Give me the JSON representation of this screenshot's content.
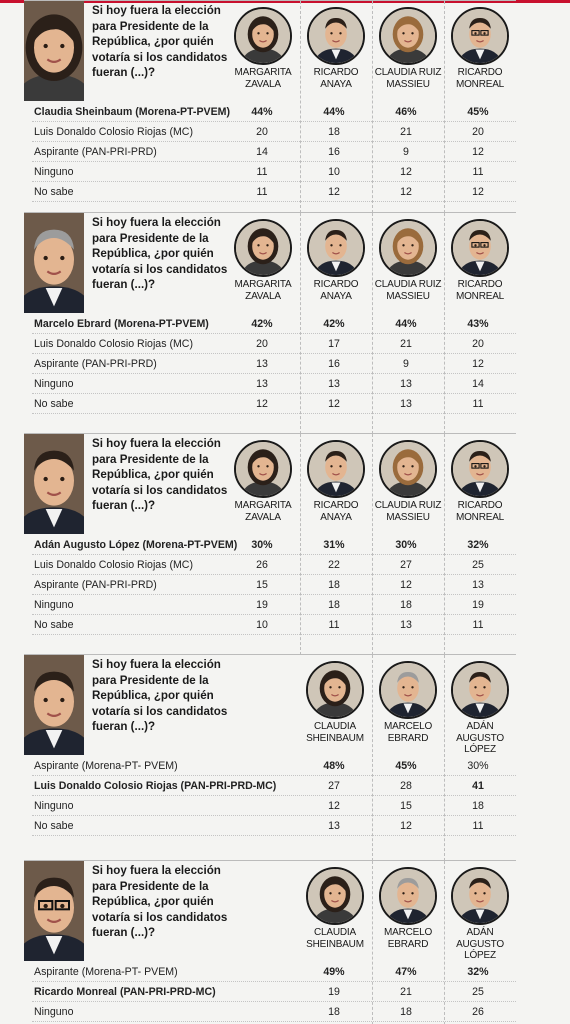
{
  "panels": [
    {
      "featured": "Claudia Sheinbaum",
      "question": "Si hoy fuera la elección para Presidente de la República, ¿por quién votaría si los candidatos fueran (...)?",
      "candidates": [
        {
          "name_lines": [
            "MARGARITA",
            "ZAVALA"
          ],
          "photo": "portrait-woman-dark-hair"
        },
        {
          "name_lines": [
            "RICARDO",
            "ANAYA"
          ],
          "photo": "portrait-man-short-hair"
        },
        {
          "name_lines": [
            "CLAUDIA RUIZ",
            "MASSIEU"
          ],
          "photo": "portrait-woman-light-hair"
        },
        {
          "name_lines": [
            "RICARDO",
            "MONREAL"
          ],
          "photo": "portrait-man-glasses"
        }
      ],
      "rows": [
        {
          "label": "Claudia Sheinbaum (Morena-PT-PVEM)",
          "bold": true,
          "values": [
            "44%",
            "44%",
            "46%",
            "45%"
          ],
          "bold_values": [
            true,
            true,
            true,
            true
          ]
        },
        {
          "label": "Luis Donaldo Colosio Riojas (MC)",
          "bold": false,
          "values": [
            "20",
            "18",
            "21",
            "20"
          ],
          "bold_values": [
            false,
            false,
            false,
            false
          ]
        },
        {
          "label": "Aspirante (PAN-PRI-PRD)",
          "bold": false,
          "values": [
            "14",
            "16",
            "9",
            "12"
          ],
          "bold_values": [
            false,
            false,
            false,
            false
          ]
        },
        {
          "label": "Ninguno",
          "bold": false,
          "values": [
            "11",
            "10",
            "12",
            "11"
          ],
          "bold_values": [
            false,
            false,
            false,
            false
          ]
        },
        {
          "label": "No sabe",
          "bold": false,
          "values": [
            "11",
            "12",
            "12",
            "12"
          ],
          "bold_values": [
            false,
            false,
            false,
            false
          ]
        }
      ]
    },
    {
      "featured": "Marcelo Ebrard",
      "question": "Si hoy fuera la elección para Presidente de la República, ¿por quién votaría si los candidatos fueran (...)?",
      "candidates": [
        {
          "name_lines": [
            "MARGARITA",
            "ZAVALA"
          ],
          "photo": "portrait-woman-dark-hair"
        },
        {
          "name_lines": [
            "RICARDO",
            "ANAYA"
          ],
          "photo": "portrait-man-short-hair"
        },
        {
          "name_lines": [
            "CLAUDIA RUIZ",
            "MASSIEU"
          ],
          "photo": "portrait-woman-light-hair"
        },
        {
          "name_lines": [
            "RICARDO",
            "MONREAL"
          ],
          "photo": "portrait-man-glasses"
        }
      ],
      "rows": [
        {
          "label": "Marcelo Ebrard (Morena-PT-PVEM)",
          "bold": true,
          "values": [
            "42%",
            "42%",
            "44%",
            "43%"
          ],
          "bold_values": [
            true,
            true,
            true,
            true
          ]
        },
        {
          "label": "Luis Donaldo Colosio Riojas (MC)",
          "bold": false,
          "values": [
            "20",
            "17",
            "21",
            "20"
          ],
          "bold_values": [
            false,
            false,
            false,
            false
          ]
        },
        {
          "label": "Aspirante (PAN-PRI-PRD)",
          "bold": false,
          "values": [
            "13",
            "16",
            "9",
            "12"
          ],
          "bold_values": [
            false,
            false,
            false,
            false
          ]
        },
        {
          "label": "Ninguno",
          "bold": false,
          "values": [
            "13",
            "13",
            "13",
            "14"
          ],
          "bold_values": [
            false,
            false,
            false,
            false
          ]
        },
        {
          "label": "No sabe",
          "bold": false,
          "values": [
            "12",
            "12",
            "13",
            "11"
          ],
          "bold_values": [
            false,
            false,
            false,
            false
          ]
        }
      ]
    },
    {
      "featured": "Adán Augusto López",
      "question": "Si hoy fuera la elección para Presidente de la República, ¿por quién votaría si los candidatos fueran (...)?",
      "candidates": [
        {
          "name_lines": [
            "MARGARITA",
            "ZAVALA"
          ],
          "photo": "portrait-woman-dark-hair"
        },
        {
          "name_lines": [
            "RICARDO",
            "ANAYA"
          ],
          "photo": "portrait-man-short-hair"
        },
        {
          "name_lines": [
            "CLAUDIA RUIZ",
            "MASSIEU"
          ],
          "photo": "portrait-woman-light-hair"
        },
        {
          "name_lines": [
            "RICARDO",
            "MONREAL"
          ],
          "photo": "portrait-man-glasses"
        }
      ],
      "rows": [
        {
          "label": "Adán Augusto López (Morena-PT-PVEM)",
          "bold": true,
          "values": [
            "30%",
            "31%",
            "30%",
            "32%"
          ],
          "bold_values": [
            true,
            true,
            true,
            true
          ]
        },
        {
          "label": "Luis Donaldo Colosio Riojas (MC)",
          "bold": false,
          "values": [
            "26",
            "22",
            "27",
            "25"
          ],
          "bold_values": [
            false,
            false,
            false,
            false
          ]
        },
        {
          "label": "Aspirante (PAN-PRI-PRD)",
          "bold": false,
          "values": [
            "15",
            "18",
            "12",
            "13"
          ],
          "bold_values": [
            false,
            false,
            false,
            false
          ]
        },
        {
          "label": "Ninguno",
          "bold": false,
          "values": [
            "19",
            "18",
            "18",
            "19"
          ],
          "bold_values": [
            false,
            false,
            false,
            false
          ]
        },
        {
          "label": "No sabe",
          "bold": false,
          "values": [
            "10",
            "11",
            "13",
            "11"
          ],
          "bold_values": [
            false,
            false,
            false,
            false
          ]
        }
      ]
    },
    {
      "featured": "Luis Donaldo Colosio Riojas",
      "question": "Si hoy fuera la elección para Presidente de la República, ¿por quién votaría si los candidatos fueran (...)?",
      "candidates": [
        {
          "name_lines": [
            "CLAUDIA",
            "SHEINBAUM"
          ],
          "photo": "portrait-woman-dark-hair"
        },
        {
          "name_lines": [
            "MARCELO",
            "EBRARD"
          ],
          "photo": "portrait-man-gray-hair"
        },
        {
          "name_lines": [
            "ADÁN AUGUSTO",
            "LÓPEZ"
          ],
          "photo": "portrait-man-dark-hair"
        }
      ],
      "rows": [
        {
          "label": "Aspirante (Morena-PT- PVEM)",
          "bold": false,
          "values": [
            "48%",
            "45%",
            "30%"
          ],
          "bold_values": [
            true,
            true,
            false
          ]
        },
        {
          "label": "Luis Donaldo Colosio Riojas (PAN-PRI-PRD-MC)",
          "bold": true,
          "values": [
            "27",
            "28",
            "41"
          ],
          "bold_values": [
            false,
            false,
            true
          ]
        },
        {
          "label": "Ninguno",
          "bold": false,
          "values": [
            "12",
            "15",
            "18"
          ],
          "bold_values": [
            false,
            false,
            false
          ]
        },
        {
          "label": "No sabe",
          "bold": false,
          "values": [
            "13",
            "12",
            "11"
          ],
          "bold_values": [
            false,
            false,
            false
          ]
        }
      ]
    },
    {
      "featured": "Ricardo Monreal",
      "question": "Si hoy fuera la elección para Presidente de la República, ¿por quién votaría si los candidatos fueran (...)?",
      "candidates": [
        {
          "name_lines": [
            "CLAUDIA",
            "SHEINBAUM"
          ],
          "photo": "portrait-woman-dark-hair"
        },
        {
          "name_lines": [
            "MARCELO",
            "EBRARD"
          ],
          "photo": "portrait-man-gray-hair"
        },
        {
          "name_lines": [
            "ADÁN AUGUSTO",
            "LÓPEZ"
          ],
          "photo": "portrait-man-dark-hair"
        }
      ],
      "rows": [
        {
          "label": "Aspirante (Morena-PT- PVEM)",
          "bold": false,
          "values": [
            "49%",
            "47%",
            "32%"
          ],
          "bold_values": [
            true,
            true,
            true
          ]
        },
        {
          "label": "Ricardo Monreal (PAN-PRI-PRD-MC)",
          "bold": true,
          "values": [
            "19",
            "21",
            "25"
          ],
          "bold_values": [
            false,
            false,
            false
          ]
        },
        {
          "label": "Ninguno",
          "bold": false,
          "values": [
            "18",
            "18",
            "26"
          ],
          "bold_values": [
            false,
            false,
            false
          ]
        }
      ]
    }
  ],
  "colors": {
    "accent": "#c8102e",
    "text": "#1a1a1a",
    "rule": "#bbbbbb"
  }
}
